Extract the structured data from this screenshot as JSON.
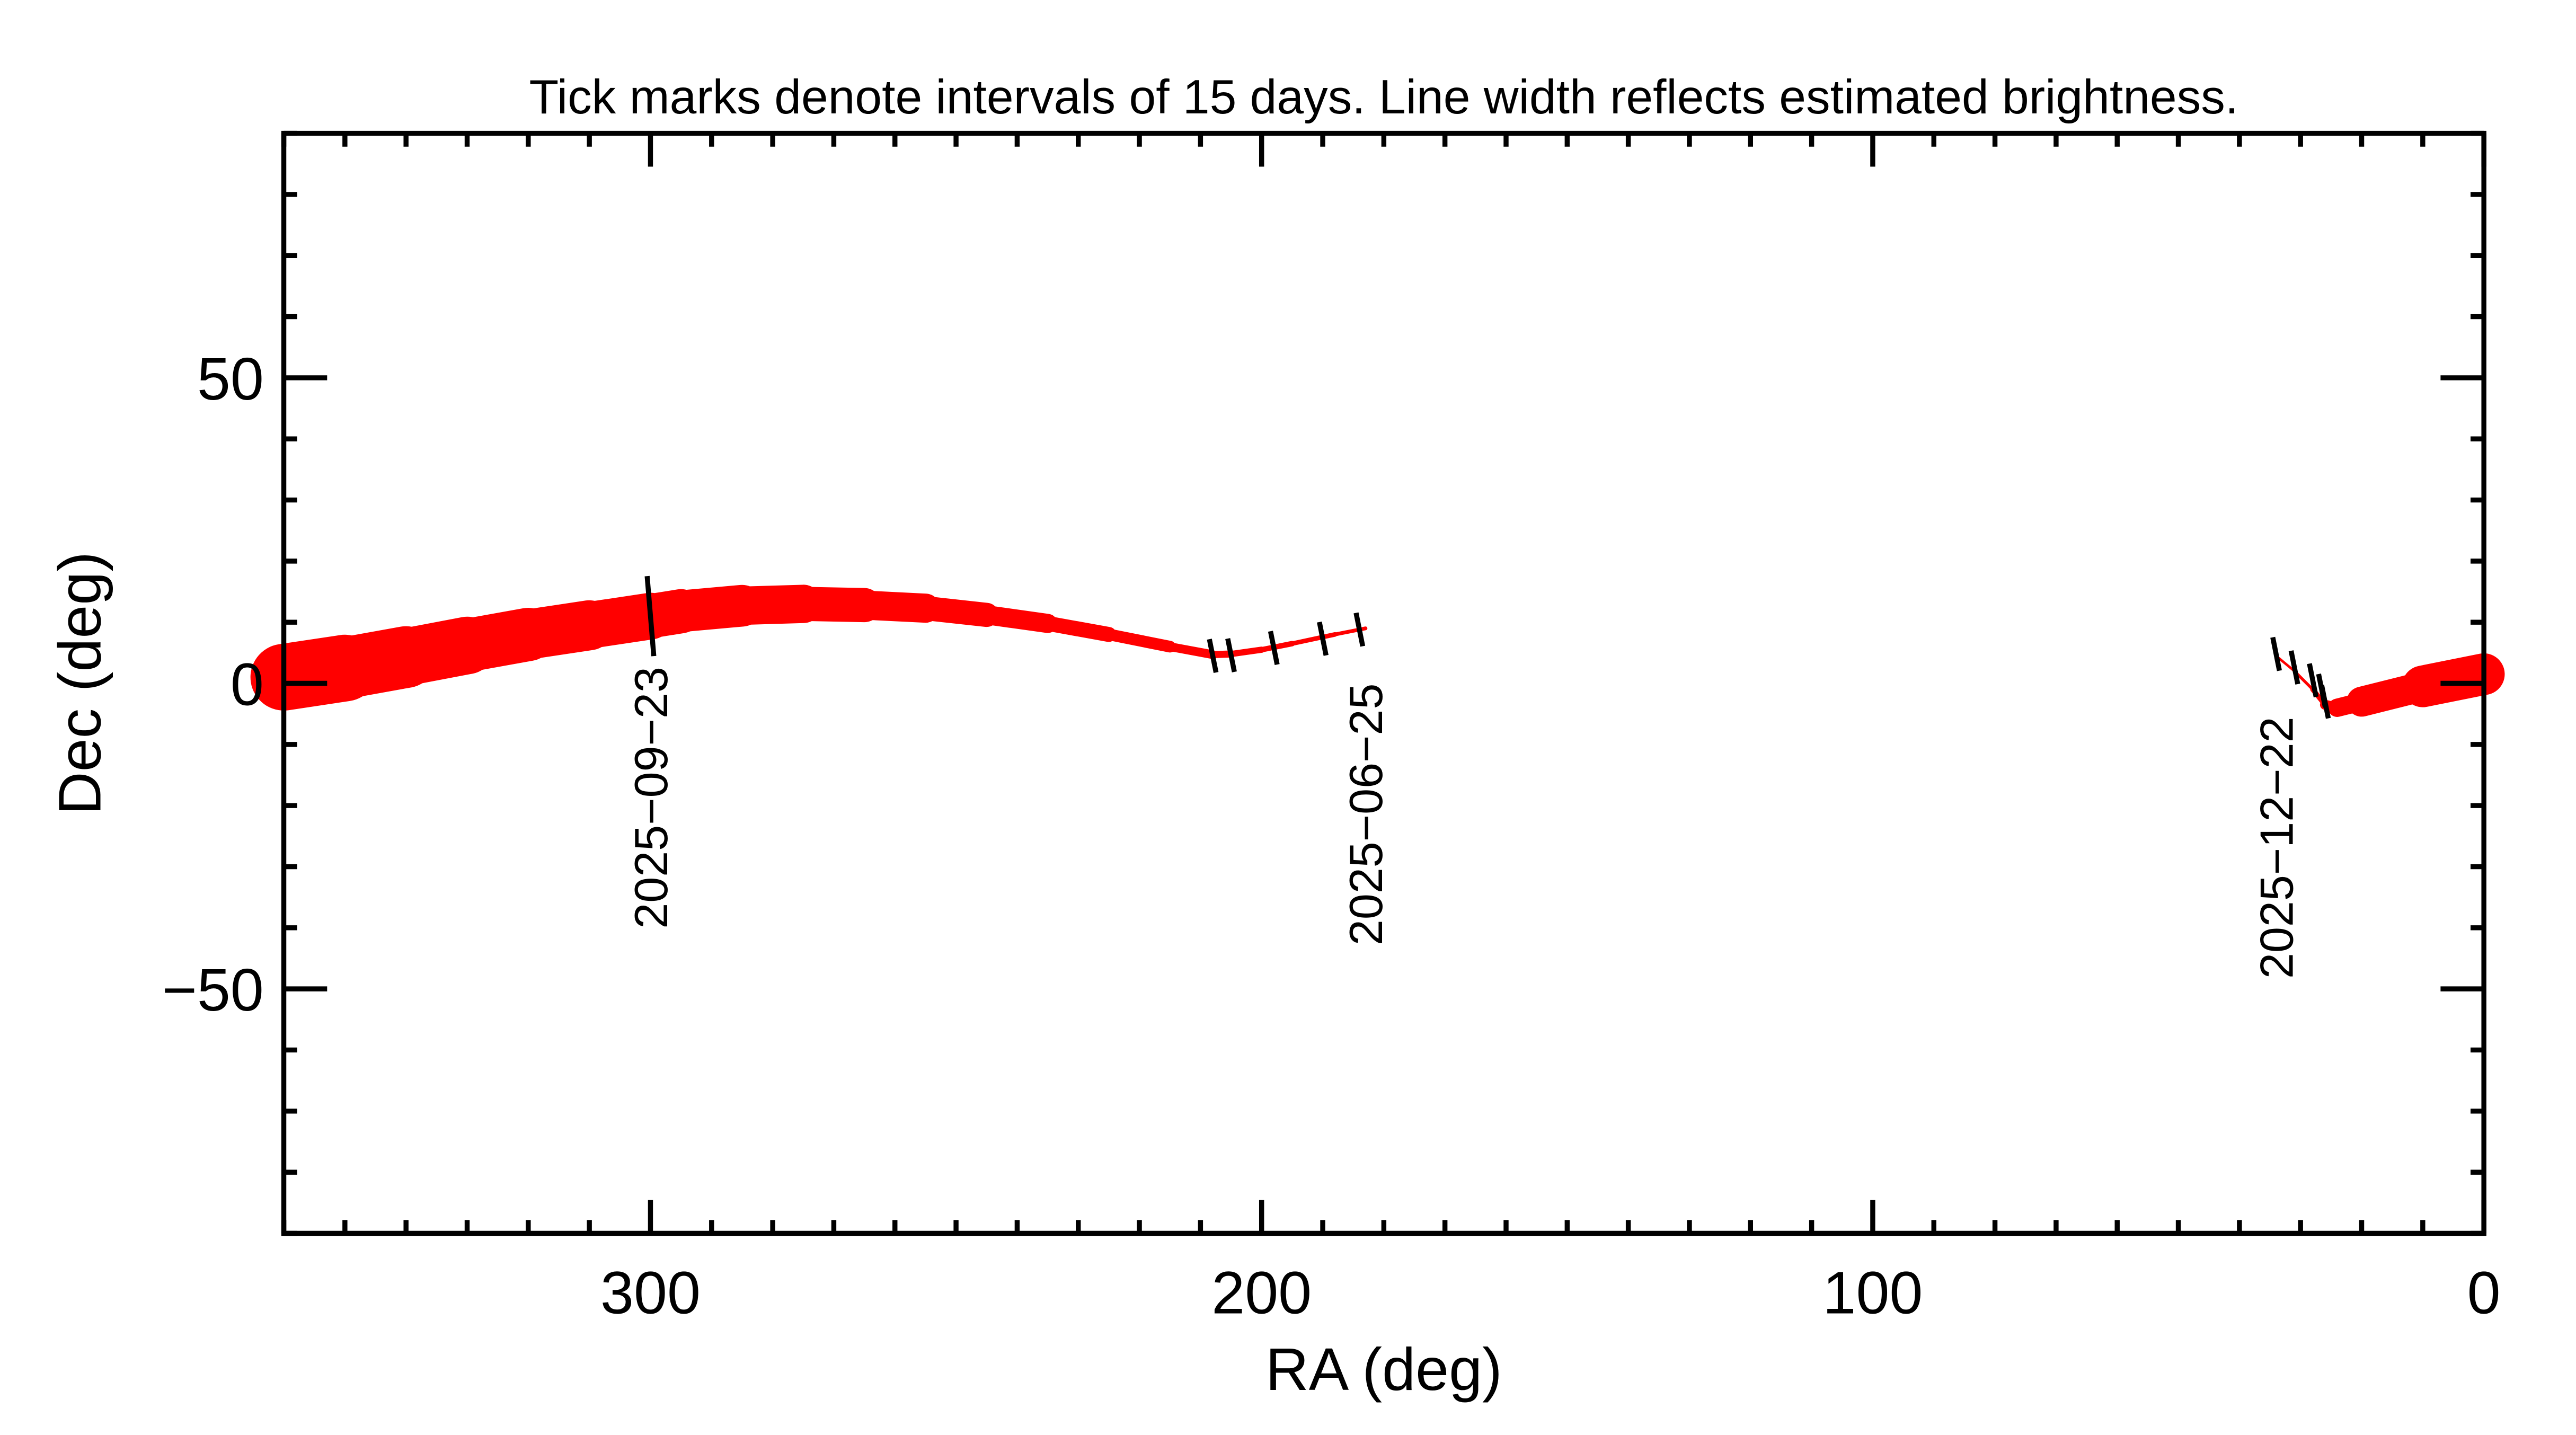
{
  "chart_data": {
    "type": "line",
    "title": "Tick marks denote intervals of 15 days.  Line width reflects estimated brightness.",
    "xlabel": "RA (deg)",
    "ylabel": "Dec (deg)",
    "xlim": [
      360,
      0
    ],
    "ylim": [
      -90,
      90
    ],
    "x_reversed": true,
    "grid": false,
    "x_ticks": [
      300,
      200,
      100,
      0
    ],
    "x_tick_labels": [
      "300",
      "200",
      "100",
      "0"
    ],
    "y_ticks": [
      50,
      0,
      -50
    ],
    "y_tick_labels": [
      "50",
      "0",
      "−50"
    ],
    "track_color": "#ff0000",
    "tick_color": "#000000",
    "series": [
      {
        "points": [
          [
            183,
            9,
            2
          ],
          [
            188,
            8,
            2.5
          ],
          [
            195,
            6.5,
            3
          ],
          [
            200,
            5.5,
            3.5
          ],
          [
            205,
            4.8,
            4
          ],
          [
            208,
            4.7,
            4.5
          ],
          [
            215,
            6,
            6
          ],
          [
            225,
            8,
            8
          ],
          [
            235,
            9.8,
            10
          ],
          [
            245,
            11.2,
            13
          ],
          [
            255,
            12.3,
            16
          ],
          [
            265,
            12.8,
            19
          ],
          [
            275,
            13,
            22
          ],
          [
            285,
            12.7,
            24
          ],
          [
            295,
            11.8,
            26
          ],
          [
            300,
            11,
            27
          ],
          [
            310,
            9.5,
            29
          ],
          [
            320,
            8,
            31
          ],
          [
            330,
            6.2,
            33
          ],
          [
            340,
            4.3,
            36
          ],
          [
            350,
            2.5,
            38
          ],
          [
            360,
            1,
            42
          ]
        ]
      },
      {
        "points": [
          [
            0,
            1.5,
            28
          ],
          [
            10,
            -0.5,
            22
          ],
          [
            20,
            -3,
            14
          ],
          [
            24,
            -4,
            8
          ],
          [
            26,
            -3.5,
            4
          ],
          [
            28,
            -1,
            2
          ],
          [
            31,
            2,
            1.5
          ],
          [
            34,
            4.5,
            1.5
          ]
        ]
      }
    ],
    "date_ticks": [
      [
        300,
        11,
        "long"
      ],
      [
        208,
        4.5,
        "short"
      ],
      [
        205,
        4.6,
        "short"
      ],
      [
        198,
        5.8,
        "short"
      ],
      [
        190,
        7.3,
        "short"
      ],
      [
        184,
        8.8,
        "short"
      ],
      [
        34,
        4.8,
        "short"
      ],
      [
        31,
        2.6,
        "short"
      ],
      [
        28,
        0.5,
        "short"
      ],
      [
        26.5,
        -1.2,
        "short"
      ],
      [
        26,
        -3,
        "short"
      ]
    ],
    "date_labels": [
      {
        "ra": 300,
        "text": "2025−09−23"
      },
      {
        "ra": 183,
        "text": "2025−06−25"
      },
      {
        "ra": 34,
        "text": "2025−12−22"
      }
    ]
  }
}
